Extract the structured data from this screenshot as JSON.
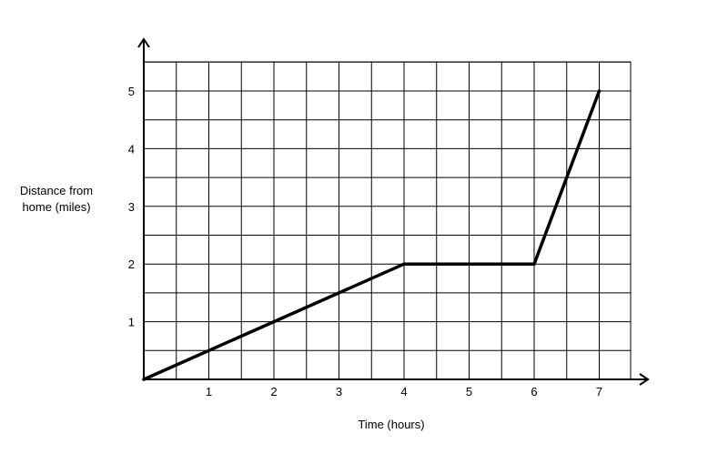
{
  "chart_data": {
    "type": "line",
    "title": "",
    "xlabel": "Time (hours)",
    "ylabel": [
      "Distance from",
      "home (miles)"
    ],
    "x_ticks": [
      {
        "value": 1,
        "label": "1"
      },
      {
        "value": 2,
        "label": "2"
      },
      {
        "value": 3,
        "label": "3"
      },
      {
        "value": 4,
        "label": "4"
      },
      {
        "value": 5,
        "label": "5"
      },
      {
        "value": 6,
        "label": "6"
      },
      {
        "value": 7,
        "label": "7"
      }
    ],
    "y_ticks": [
      {
        "value": 1,
        "label": "1"
      },
      {
        "value": 2,
        "label": "2"
      },
      {
        "value": 3,
        "label": "3"
      },
      {
        "value": 4,
        "label": "4"
      },
      {
        "value": 5,
        "label": "5"
      }
    ],
    "xlim": [
      0,
      7.5
    ],
    "ylim": [
      0,
      5.5
    ],
    "grid": true,
    "grid_step_x": 0.5,
    "grid_step_y": 0.5,
    "axis_arrows": true,
    "series": [
      {
        "x": [
          0,
          4,
          6,
          7
        ],
        "y": [
          0,
          2,
          2,
          5
        ],
        "color": "#000000"
      }
    ]
  }
}
